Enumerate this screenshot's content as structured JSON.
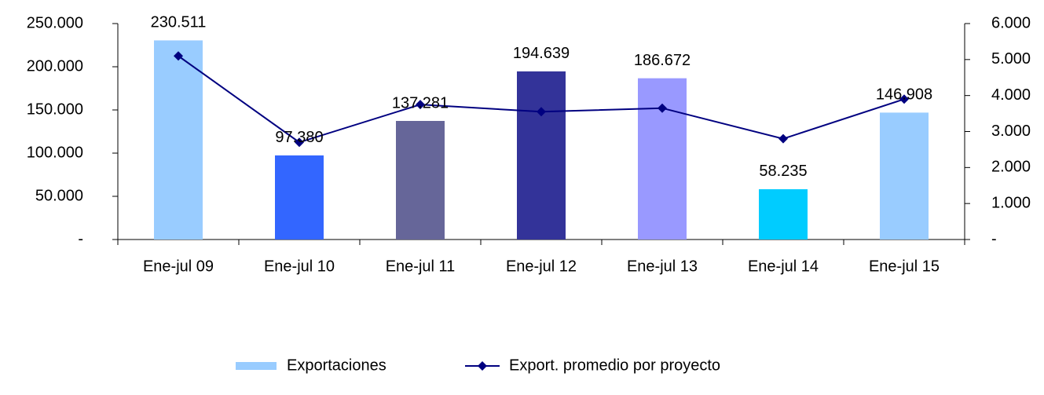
{
  "chart_data": {
    "type": "bar",
    "categories": [
      "Ene-jul 09",
      "Ene-jul 10",
      "Ene-jul 11",
      "Ene-jul 12",
      "Ene-jul 13",
      "Ene-jul 14",
      "Ene-jul 15"
    ],
    "series": [
      {
        "name": "Exportaciones",
        "type": "bar",
        "color": "#99ccff",
        "colors": [
          "#99ccff",
          "#3366ff",
          "#666699",
          "#333399",
          "#9999ff",
          "#00ccff",
          "#99ccff"
        ],
        "values": [
          230511,
          97380,
          137281,
          194639,
          186672,
          58235,
          146908
        ],
        "value_labels": [
          "230.511",
          "97.380",
          "137.281",
          "194.639",
          "186.672",
          "58.235",
          "146.908"
        ]
      },
      {
        "name": "Export. promedio por proyecto",
        "type": "line",
        "axis": "y2",
        "color": "#000080",
        "values": [
          5100,
          2700,
          3750,
          3550,
          3650,
          2800,
          3900
        ]
      }
    ],
    "ylim": [
      0,
      250000
    ],
    "yticks": [
      {
        "value": 0,
        "label": "-"
      },
      {
        "value": 50000,
        "label": "50.000"
      },
      {
        "value": 100000,
        "label": "100.000"
      },
      {
        "value": 150000,
        "label": "150.000"
      },
      {
        "value": 200000,
        "label": "200.000"
      },
      {
        "value": 250000,
        "label": "250.000"
      }
    ],
    "y2lim": [
      0,
      6000
    ],
    "y2ticks": [
      {
        "value": 0,
        "label": "-"
      },
      {
        "value": 1000,
        "label": "1.000"
      },
      {
        "value": 2000,
        "label": "2.000"
      },
      {
        "value": 3000,
        "label": "3.000"
      },
      {
        "value": 4000,
        "label": "4.000"
      },
      {
        "value": 5000,
        "label": "5.000"
      },
      {
        "value": 6000,
        "label": "6.000"
      }
    ],
    "grid": false,
    "legend": "bottom"
  }
}
